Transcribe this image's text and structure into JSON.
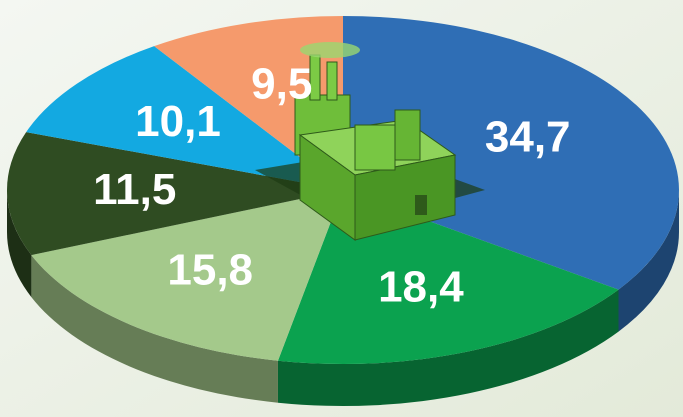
{
  "chart_data": {
    "type": "pie",
    "values": [
      34.7,
      18.4,
      15.8,
      11.5,
      10.1,
      9.5
    ],
    "value_labels": [
      "34,7",
      "18,4",
      "15,8",
      "11,5",
      "10,1",
      "9,5"
    ],
    "colors": [
      "#2f6eb5",
      "#0ba24f",
      "#a4c98b",
      "#2f4c22",
      "#13a9e1",
      "#f59a6c"
    ],
    "start_angle": 0,
    "direction": "clockwise",
    "three_d": true
  }
}
